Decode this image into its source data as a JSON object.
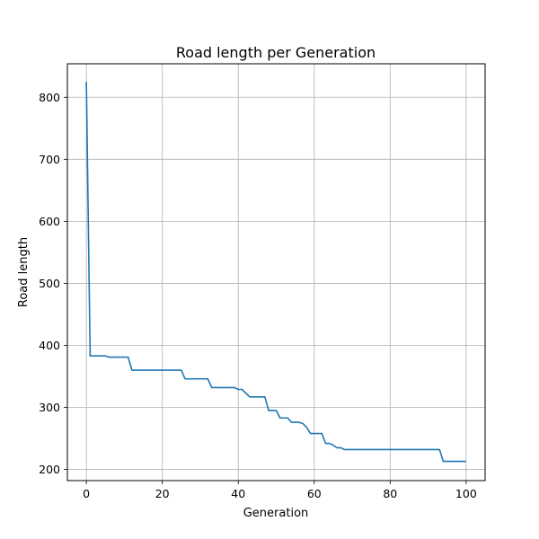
{
  "chart_data": {
    "type": "line",
    "title": "Road length per Generation",
    "xlabel": "Generation",
    "ylabel": "Road length",
    "xlim": [
      -5,
      105
    ],
    "ylim": [
      182,
      854
    ],
    "xticks": [
      0,
      20,
      40,
      60,
      80,
      100
    ],
    "yticks": [
      200,
      300,
      400,
      500,
      600,
      700,
      800
    ],
    "grid": true,
    "legend": "none",
    "colors": {
      "line": "#1f77b4",
      "grid": "#b0b0b0",
      "axes": "#000000"
    },
    "series": [
      {
        "points": [
          [
            0,
            825
          ],
          [
            1,
            383
          ],
          [
            5,
            383
          ],
          [
            6,
            381
          ],
          [
            11,
            381
          ],
          [
            12,
            360
          ],
          [
            25,
            360
          ],
          [
            26,
            346
          ],
          [
            32,
            346
          ],
          [
            33,
            332
          ],
          [
            39,
            332
          ],
          [
            40,
            329
          ],
          [
            41,
            329
          ],
          [
            42,
            323
          ],
          [
            43,
            317
          ],
          [
            47,
            317
          ],
          [
            48,
            295
          ],
          [
            50,
            295
          ],
          [
            51,
            283
          ],
          [
            53,
            283
          ],
          [
            54,
            276
          ],
          [
            56,
            276
          ],
          [
            57,
            274
          ],
          [
            58,
            268
          ],
          [
            59,
            258
          ],
          [
            62,
            258
          ],
          [
            63,
            242
          ],
          [
            64,
            242
          ],
          [
            65,
            239
          ],
          [
            66,
            235
          ],
          [
            67,
            235
          ],
          [
            68,
            232
          ],
          [
            93,
            232
          ],
          [
            94,
            213
          ],
          [
            100,
            213
          ]
        ]
      }
    ]
  }
}
